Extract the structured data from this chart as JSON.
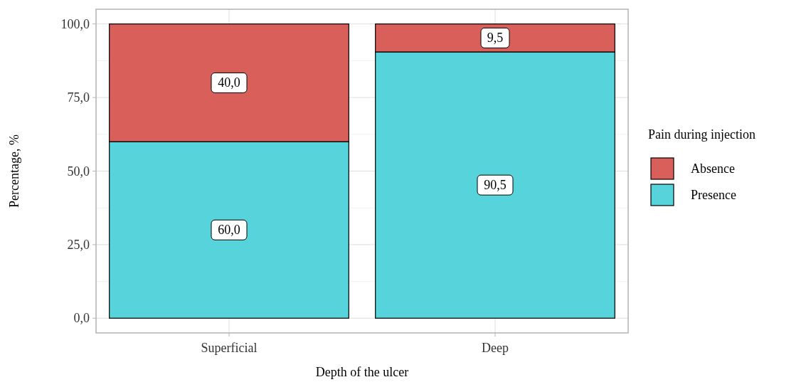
{
  "chart_data": {
    "type": "bar",
    "stacked": true,
    "xlabel": "Depth of the ulcer",
    "ylabel": "Percentage, %",
    "legend_title": "Pain during injection",
    "legend": "right",
    "grid": true,
    "categories": [
      "Superficial",
      "Deep"
    ],
    "series": [
      {
        "name": "Presence",
        "color": "#56d3db",
        "values": [
          60,
          90.5
        ],
        "value_labels": [
          "60,0",
          "90,5"
        ]
      },
      {
        "name": "Absence",
        "color": "#d9605a",
        "values": [
          40,
          9.5
        ],
        "value_labels": [
          "40,0",
          "9,5"
        ]
      }
    ],
    "ylim": [
      -5,
      105
    ],
    "yticks": [
      {
        "value": 0,
        "label": "0,0"
      },
      {
        "value": 25,
        "label": "25,0"
      },
      {
        "value": 50,
        "label": "50,0"
      },
      {
        "value": 75,
        "label": "75,0"
      },
      {
        "value": 100,
        "label": "100,0"
      }
    ]
  }
}
